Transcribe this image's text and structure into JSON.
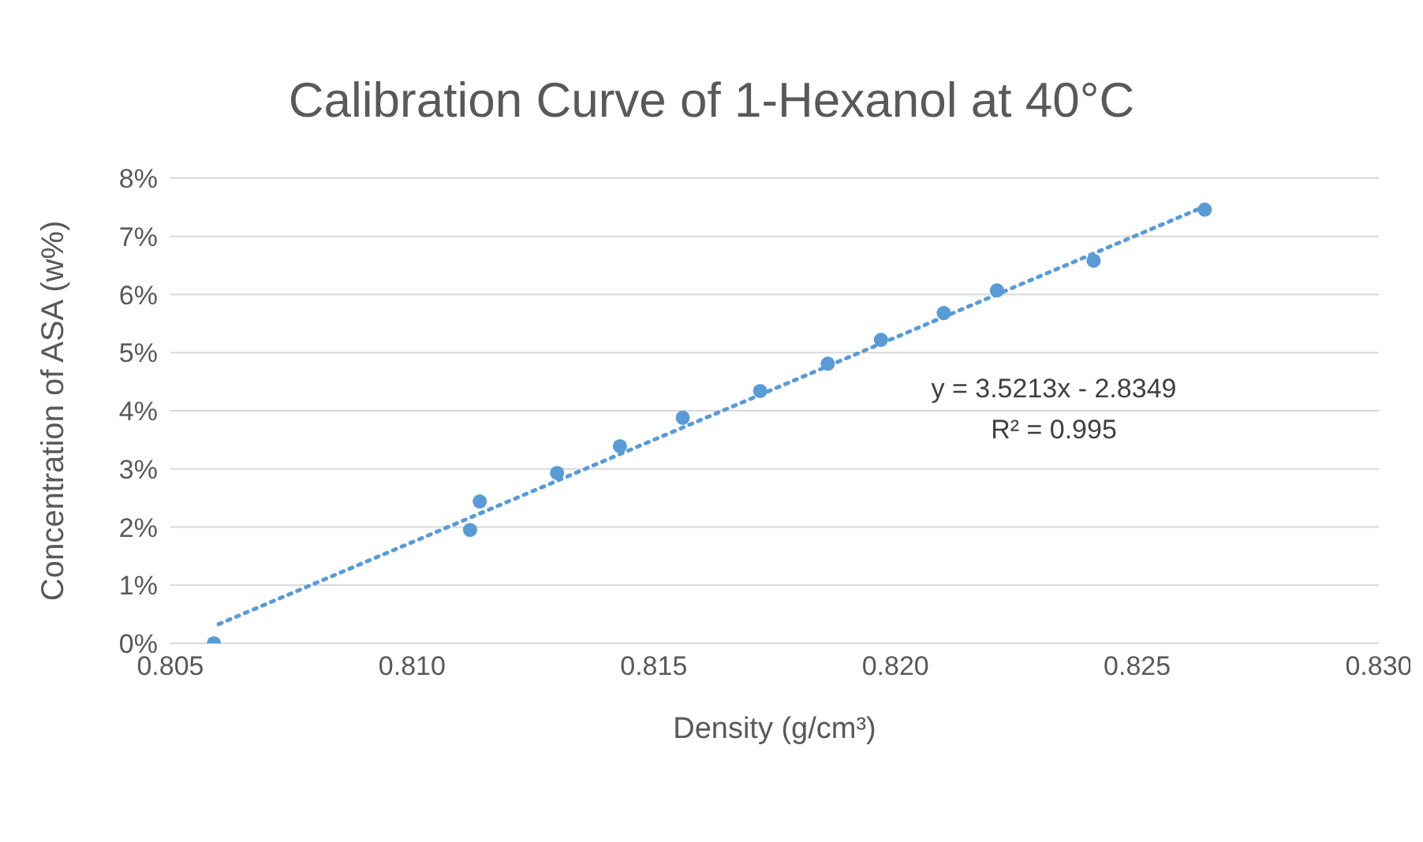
{
  "chart_data": {
    "type": "scatter",
    "title": "Calibration Curve of 1-Hexanol at 40°C",
    "xlabel": "Density (g/cm³)",
    "ylabel": "Concentration of ASA (w%)",
    "xlim": [
      0.805,
      0.83
    ],
    "xticks": [
      {
        "value": 0.805,
        "label": "0.805"
      },
      {
        "value": 0.81,
        "label": "0.810"
      },
      {
        "value": 0.815,
        "label": "0.815"
      },
      {
        "value": 0.82,
        "label": "0.820"
      },
      {
        "value": 0.825,
        "label": "0.825"
      },
      {
        "value": 0.83,
        "label": "0.830"
      }
    ],
    "ylim": [
      0,
      8
    ],
    "yticks": [
      {
        "value": 0,
        "label": "0%"
      },
      {
        "value": 1,
        "label": "1%"
      },
      {
        "value": 2,
        "label": "2%"
      },
      {
        "value": 3,
        "label": "3%"
      },
      {
        "value": 4,
        "label": "4%"
      },
      {
        "value": 5,
        "label": "5%"
      },
      {
        "value": 6,
        "label": "6%"
      },
      {
        "value": 7,
        "label": "7%"
      },
      {
        "value": 8,
        "label": "8%"
      }
    ],
    "grid": "y",
    "series": [
      {
        "color": "#5b9bd5",
        "marker": "circle",
        "x": [
          0.8059,
          0.8112,
          0.8114,
          0.813,
          0.8143,
          0.8156,
          0.8172,
          0.8186,
          0.8197,
          0.821,
          0.8221,
          0.8241,
          0.8264
        ],
        "values": [
          0,
          1.95,
          2.44,
          2.93,
          3.39,
          3.88,
          4.34,
          4.81,
          5.22,
          5.68,
          6.07,
          6.58,
          7.46
        ]
      },
      {
        "type": "line",
        "color": "#5b9bd5",
        "line_style": "dotted",
        "marker": "none",
        "x": [
          0.806,
          0.8265
        ],
        "values": [
          0.33,
          7.55
        ]
      }
    ],
    "annotations": [
      "y = 3.5213x - 2.8349",
      "R² = 0.995"
    ]
  }
}
